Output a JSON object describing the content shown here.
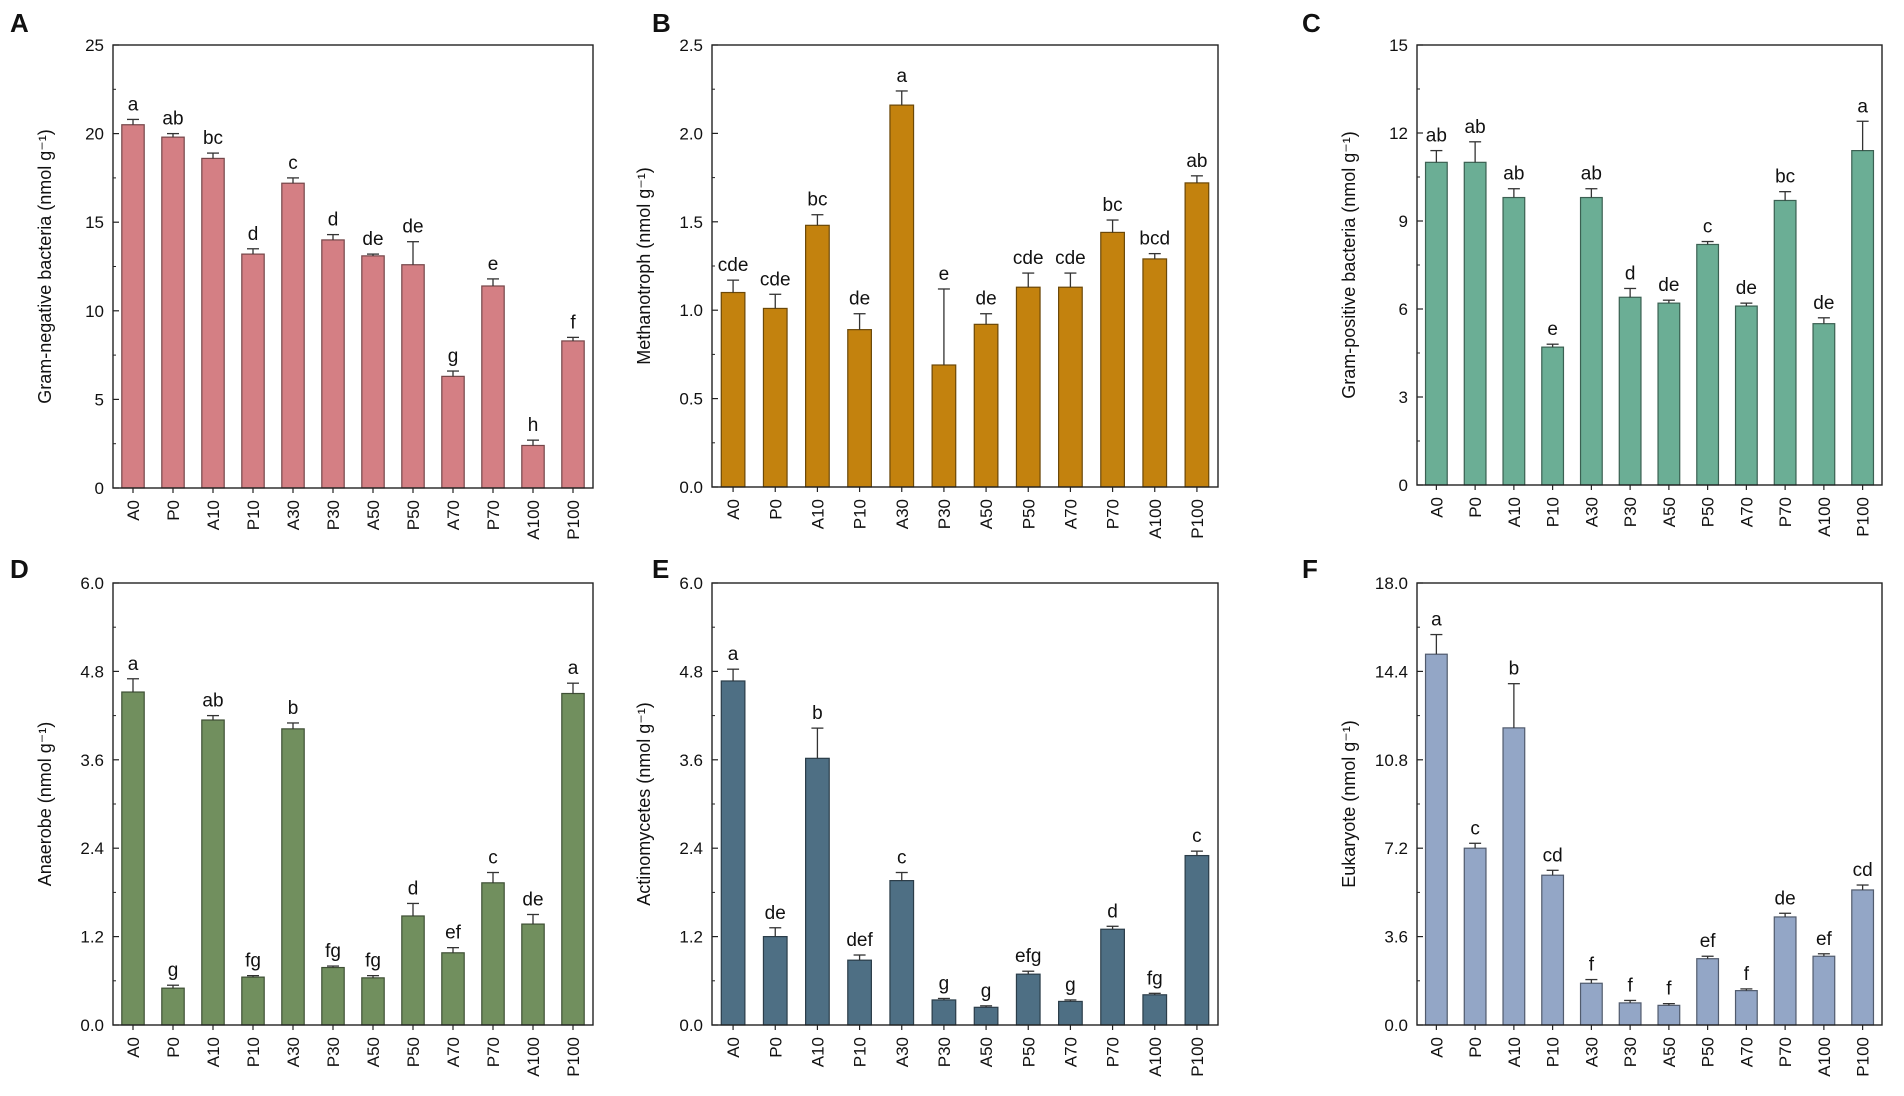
{
  "figure": {
    "title": ""
  },
  "chart_data": [
    {
      "panel": "A",
      "type": "bar",
      "color": "#D47F84",
      "ylabel": "Gram-negative bacteria (nmol g⁻¹)",
      "ylim": [
        0,
        25
      ],
      "yticks": [
        0,
        5,
        10,
        15,
        20,
        25
      ],
      "ytick_labels": [
        "0",
        "5",
        "10",
        "15",
        "20",
        "25"
      ],
      "categories": [
        "A0",
        "P0",
        "A10",
        "P10",
        "A30",
        "P30",
        "A50",
        "P50",
        "A70",
        "P70",
        "A100",
        "P100"
      ],
      "values": [
        20.5,
        19.8,
        18.6,
        13.2,
        17.2,
        14.0,
        13.1,
        12.6,
        6.3,
        11.4,
        2.4,
        8.3
      ],
      "errors": [
        0.3,
        0.2,
        0.3,
        0.3,
        0.3,
        0.3,
        0.1,
        1.3,
        0.3,
        0.4,
        0.3,
        0.2
      ],
      "sig": [
        "a",
        "ab",
        "bc",
        "d",
        "c",
        "d",
        "de",
        "de",
        "g",
        "e",
        "h",
        "f"
      ]
    },
    {
      "panel": "B",
      "type": "bar",
      "color": "#C3820E",
      "ylabel": "Methanotroph (nmol g⁻¹)",
      "ylim": [
        0,
        2.5
      ],
      "yticks": [
        0,
        0.5,
        1.0,
        1.5,
        2.0,
        2.5
      ],
      "ytick_labels": [
        "0.0",
        "0.5",
        "1.0",
        "1.5",
        "2.0",
        "2.5"
      ],
      "categories": [
        "A0",
        "P0",
        "A10",
        "P10",
        "A30",
        "P30",
        "A50",
        "P50",
        "A70",
        "P70",
        "A100",
        "P100"
      ],
      "values": [
        1.1,
        1.01,
        1.48,
        0.89,
        2.16,
        0.69,
        0.92,
        1.13,
        1.13,
        1.44,
        1.29,
        1.72
      ],
      "errors": [
        0.07,
        0.08,
        0.06,
        0.09,
        0.08,
        0.43,
        0.06,
        0.08,
        0.08,
        0.07,
        0.03,
        0.04
      ],
      "sig": [
        "cde",
        "cde",
        "bc",
        "de",
        "a",
        "e",
        "de",
        "cde",
        "cde",
        "bc",
        "bcd",
        "ab"
      ]
    },
    {
      "panel": "C",
      "type": "bar",
      "color": "#6BAE95",
      "ylabel": "Gram-positive bacteria (nmol g⁻¹)",
      "ylim": [
        0,
        15
      ],
      "yticks": [
        0,
        3,
        6,
        9,
        12,
        15
      ],
      "ytick_labels": [
        "0",
        "3",
        "6",
        "9",
        "12",
        "15"
      ],
      "categories": [
        "A0",
        "P0",
        "A10",
        "P10",
        "A30",
        "P30",
        "A50",
        "P50",
        "A70",
        "P70",
        "A100",
        "P100"
      ],
      "values": [
        11.0,
        11.0,
        9.8,
        4.7,
        9.8,
        6.4,
        6.2,
        8.2,
        6.1,
        9.7,
        5.5,
        11.4
      ],
      "errors": [
        0.4,
        0.7,
        0.3,
        0.1,
        0.3,
        0.3,
        0.1,
        0.1,
        0.1,
        0.3,
        0.2,
        1.0
      ],
      "sig": [
        "ab",
        "ab",
        "ab",
        "e",
        "ab",
        "d",
        "de",
        "c",
        "de",
        "bc",
        "de",
        "a"
      ]
    },
    {
      "panel": "D",
      "type": "bar",
      "color": "#718F5E",
      "ylabel": "Anaerobe (nmol g⁻¹)",
      "ylim": [
        0,
        6.0
      ],
      "yticks": [
        0,
        1.2,
        2.4,
        3.6,
        4.8,
        6.0
      ],
      "ytick_labels": [
        "0.0",
        "1.2",
        "2.4",
        "3.6",
        "4.8",
        "6.0"
      ],
      "categories": [
        "A0",
        "P0",
        "A10",
        "P10",
        "A30",
        "P30",
        "A50",
        "P50",
        "A70",
        "P70",
        "A100",
        "P100"
      ],
      "values": [
        4.52,
        0.5,
        4.14,
        0.65,
        4.02,
        0.78,
        0.64,
        1.48,
        0.98,
        1.93,
        1.37,
        4.5
      ],
      "errors": [
        0.18,
        0.04,
        0.06,
        0.02,
        0.08,
        0.02,
        0.03,
        0.17,
        0.07,
        0.14,
        0.13,
        0.14
      ],
      "sig": [
        "a",
        "g",
        "ab",
        "fg",
        "b",
        "fg",
        "fg",
        "d",
        "ef",
        "c",
        "de",
        "a"
      ]
    },
    {
      "panel": "E",
      "type": "bar",
      "color": "#4E6F84",
      "ylabel": "Actinomycetes (nmol g⁻¹)",
      "ylim": [
        0,
        6.0
      ],
      "yticks": [
        0,
        1.2,
        2.4,
        3.6,
        4.8,
        6.0
      ],
      "ytick_labels": [
        "0.0",
        "1.2",
        "2.4",
        "3.6",
        "4.8",
        "6.0"
      ],
      "categories": [
        "A0",
        "P0",
        "A10",
        "P10",
        "A30",
        "P30",
        "A50",
        "P50",
        "A70",
        "P70",
        "A100",
        "P100"
      ],
      "values": [
        4.67,
        1.2,
        3.62,
        0.88,
        1.96,
        0.34,
        0.24,
        0.69,
        0.32,
        1.3,
        0.41,
        2.3
      ],
      "errors": [
        0.16,
        0.12,
        0.41,
        0.07,
        0.11,
        0.02,
        0.02,
        0.04,
        0.02,
        0.04,
        0.02,
        0.06
      ],
      "sig": [
        "a",
        "de",
        "b",
        "def",
        "c",
        "g",
        "g",
        "efg",
        "g",
        "d",
        "fg",
        "c"
      ]
    },
    {
      "panel": "F",
      "type": "bar",
      "color": "#93A6C6",
      "ylabel": "Eukaryote (nmol g⁻¹)",
      "ylim": [
        0,
        18.0
      ],
      "yticks": [
        0,
        3.6,
        7.2,
        10.8,
        14.4,
        18.0
      ],
      "ytick_labels": [
        "0.0",
        "3.6",
        "7.2",
        "10.8",
        "14.4",
        "18.0"
      ],
      "categories": [
        "A0",
        "P0",
        "A10",
        "P10",
        "A30",
        "P30",
        "A50",
        "P50",
        "A70",
        "P70",
        "A100",
        "P100"
      ],
      "values": [
        15.1,
        7.2,
        12.1,
        6.1,
        1.7,
        0.9,
        0.8,
        2.7,
        1.4,
        4.4,
        2.8,
        5.5
      ],
      "errors": [
        0.8,
        0.2,
        1.8,
        0.2,
        0.15,
        0.1,
        0.07,
        0.1,
        0.07,
        0.15,
        0.1,
        0.2
      ],
      "sig": [
        "a",
        "c",
        "b",
        "cd",
        "f",
        "f",
        "f",
        "ef",
        "f",
        "de",
        "ef",
        "cd"
      ]
    }
  ]
}
